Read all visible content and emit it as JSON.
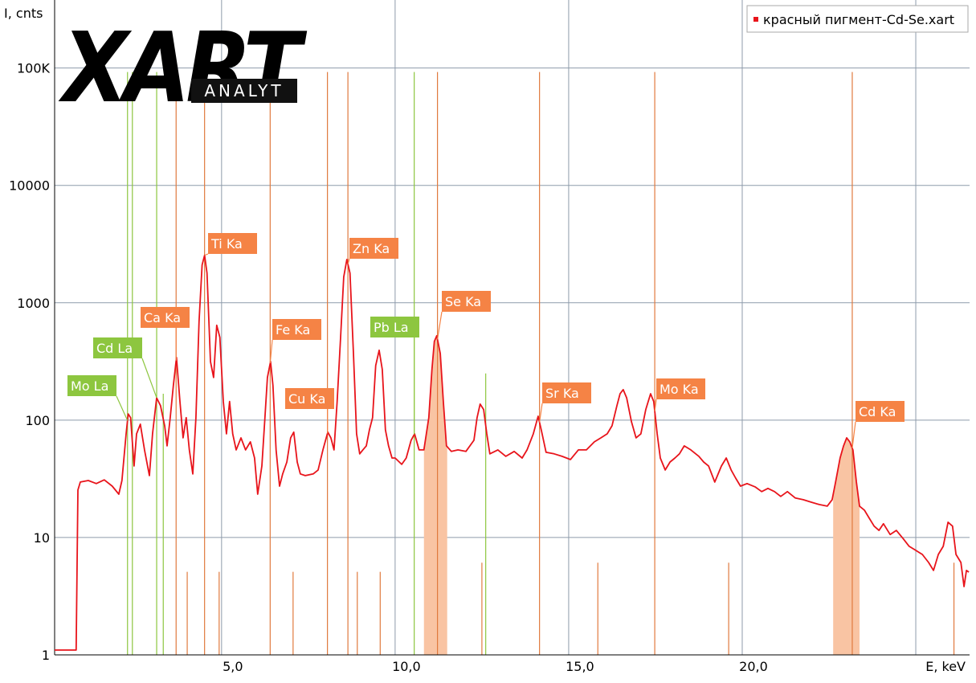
{
  "logo": {
    "name": "XART",
    "tagline": "ANALYT"
  },
  "chart_data": {
    "type": "line",
    "log_y": true,
    "grid": true,
    "legend": "top-right",
    "ylabel": "I, cnts",
    "xlabel": "E, keV",
    "xlim": [
      0.19,
      26.55
    ],
    "ylim": [
      1,
      380000
    ],
    "xticks": [
      {
        "value": 5,
        "label": "5,0"
      },
      {
        "value": 10,
        "label": "10,0"
      },
      {
        "value": 15,
        "label": "15,0"
      },
      {
        "value": 20,
        "label": "20,0"
      },
      {
        "value": 25,
        "label": null
      }
    ],
    "yticks": [
      1,
      10,
      100,
      1000,
      10000,
      {
        "value": 100000,
        "label": "100K"
      }
    ],
    "x": [
      0.19,
      0.81,
      0.86,
      0.93,
      1.16,
      1.39,
      1.62,
      1.85,
      2.04,
      2.13,
      2.25,
      2.31,
      2.38,
      2.48,
      2.55,
      2.66,
      2.78,
      2.92,
      3.01,
      3.13,
      3.24,
      3.36,
      3.43,
      3.52,
      3.61,
      3.7,
      3.8,
      3.89,
      3.98,
      4.07,
      4.17,
      4.26,
      4.35,
      4.44,
      4.51,
      4.58,
      4.68,
      4.77,
      4.86,
      4.95,
      5.05,
      5.14,
      5.23,
      5.32,
      5.42,
      5.56,
      5.69,
      5.83,
      5.95,
      6.04,
      6.16,
      6.25,
      6.32,
      6.41,
      6.48,
      6.57,
      6.67,
      6.76,
      6.88,
      6.99,
      7.08,
      7.18,
      7.27,
      7.41,
      7.64,
      7.78,
      7.92,
      8.06,
      8.15,
      8.24,
      8.33,
      8.43,
      8.52,
      8.61,
      8.7,
      8.8,
      8.89,
      8.98,
      9.07,
      9.17,
      9.26,
      9.35,
      9.44,
      9.54,
      9.63,
      9.72,
      9.81,
      9.91,
      10.0,
      10.19,
      10.32,
      10.46,
      10.56,
      10.69,
      10.83,
      10.97,
      11.06,
      11.13,
      11.2,
      11.3,
      11.39,
      11.48,
      11.62,
      11.81,
      12.04,
      12.27,
      12.36,
      12.45,
      12.55,
      12.64,
      12.73,
      12.96,
      13.19,
      13.43,
      13.66,
      13.8,
      13.98,
      14.12,
      14.21,
      14.35,
      14.58,
      14.81,
      15.05,
      15.28,
      15.51,
      15.74,
      15.93,
      16.11,
      16.25,
      16.39,
      16.48,
      16.57,
      16.67,
      16.81,
      16.94,
      17.08,
      17.22,
      17.36,
      17.45,
      17.55,
      17.64,
      17.78,
      17.92,
      18.06,
      18.19,
      18.33,
      18.52,
      18.75,
      18.89,
      19.03,
      19.21,
      19.4,
      19.54,
      19.68,
      19.81,
      19.95,
      20.14,
      20.37,
      20.56,
      20.74,
      20.93,
      21.11,
      21.3,
      21.53,
      21.76,
      21.99,
      22.22,
      22.45,
      22.59,
      22.69,
      22.82,
      22.92,
      23.01,
      23.1,
      23.19,
      23.29,
      23.38,
      23.52,
      23.66,
      23.8,
      23.94,
      24.07,
      24.26,
      24.44,
      24.63,
      24.81,
      25.0,
      25.19,
      25.37,
      25.51,
      25.65,
      25.79,
      25.93,
      26.06,
      26.16,
      26.3,
      26.39,
      26.46,
      26.53
    ],
    "series": [
      {
        "name": "красный пигмент-Cd-Se.xart",
        "color": "#e8141b",
        "values": [
          1.1,
          1.1,
          25.4,
          29.7,
          30.6,
          28.8,
          31,
          27.4,
          23.4,
          30.6,
          76.5,
          113,
          105,
          40.7,
          76.5,
          92.4,
          55.8,
          33.7,
          76.5,
          155,
          133,
          89.5,
          60.4,
          105,
          197,
          342,
          144,
          70.7,
          105,
          55.8,
          34.8,
          105,
          695,
          2100,
          2540,
          1790,
          316,
          231,
          643,
          508,
          144,
          76.5,
          144,
          76.5,
          55.8,
          70.7,
          55.8,
          65.3,
          47.6,
          23.4,
          40.7,
          105,
          231,
          316,
          197,
          55.8,
          27.4,
          34.8,
          44.0,
          70.7,
          79,
          44.0,
          34.8,
          33.7,
          34.8,
          37.6,
          55.8,
          79,
          70.7,
          55.8,
          144,
          508,
          1660,
          2340,
          1790,
          370,
          76.5,
          51.6,
          55.8,
          60.4,
          82.7,
          105,
          292,
          394,
          270,
          82.7,
          60.4,
          47.6,
          47.6,
          42.0,
          47.6,
          67.4,
          76.5,
          55.8,
          55.8,
          105,
          270,
          469,
          524,
          370,
          144,
          60.4,
          54.1,
          55.8,
          54.1,
          67.4,
          105,
          137,
          123,
          76.5,
          51.6,
          55.8,
          49.2,
          54.1,
          47.6,
          55.8,
          76.5,
          108,
          82.7,
          53.2,
          51.6,
          49.2,
          46.2,
          55.8,
          55.8,
          65.3,
          70.7,
          76.5,
          89.5,
          133,
          168,
          182,
          155,
          96.9,
          70.7,
          76.5,
          123,
          168,
          144,
          76.5,
          47.6,
          37.6,
          44.0,
          47.6,
          51.6,
          60.4,
          55.8,
          49.2,
          44.0,
          40.7,
          29.7,
          40.7,
          47.6,
          37.6,
          32.1,
          27.4,
          28.8,
          27.0,
          24.6,
          26.2,
          24.6,
          22.4,
          24.6,
          21.7,
          21.0,
          20.0,
          19.1,
          18.5,
          21.0,
          29.7,
          47.6,
          60.4,
          70.7,
          65.3,
          55.8,
          29.7,
          18.5,
          17.1,
          14.6,
          12.5,
          11.5,
          13.1,
          10.6,
          11.5,
          9.85,
          8.41,
          7.77,
          7.18,
          6.13,
          5.24,
          7.18,
          8.41,
          13.5,
          12.5,
          7.18,
          6.13,
          3.82,
          5.24,
          5.07
        ]
      }
    ],
    "element_lines": [
      {
        "energy": 2.29,
        "counts": 92500,
        "color": "#8dc63f"
      },
      {
        "energy": 2.43,
        "counts": 92500,
        "color": "#8dc63f"
      },
      {
        "energy": 3.13,
        "counts": 92500,
        "color": "#8dc63f"
      },
      {
        "energy": 3.32,
        "counts": 168,
        "color": "#8dc63f"
      },
      {
        "energy": 3.69,
        "counts": 92500,
        "color": "#e07a3e"
      },
      {
        "energy": 4.01,
        "counts": 5.1,
        "color": "#e07a3e"
      },
      {
        "energy": 4.51,
        "counts": 92500,
        "color": "#e07a3e"
      },
      {
        "energy": 4.93,
        "counts": 5.1,
        "color": "#e07a3e"
      },
      {
        "energy": 6.4,
        "counts": 92500,
        "color": "#e07a3e"
      },
      {
        "energy": 7.06,
        "counts": 5.1,
        "color": "#e07a3e"
      },
      {
        "energy": 8.05,
        "counts": 92500,
        "color": "#e07a3e"
      },
      {
        "energy": 8.91,
        "counts": 5.1,
        "color": "#e07a3e"
      },
      {
        "energy": 8.64,
        "counts": 92500,
        "color": "#e07a3e"
      },
      {
        "energy": 9.57,
        "counts": 5.1,
        "color": "#e07a3e"
      },
      {
        "energy": 10.55,
        "counts": 92500,
        "color": "#8dc63f"
      },
      {
        "energy": 12.61,
        "counts": 250,
        "color": "#8dc63f"
      },
      {
        "energy": 11.22,
        "counts": 92500,
        "color": "#e07a3e"
      },
      {
        "energy": 12.5,
        "counts": 6.1,
        "color": "#e07a3e"
      },
      {
        "energy": 14.16,
        "counts": 92500,
        "color": "#e07a3e"
      },
      {
        "energy": 15.84,
        "counts": 6.1,
        "color": "#e07a3e"
      },
      {
        "energy": 17.48,
        "counts": 92500,
        "color": "#e07a3e"
      },
      {
        "energy": 19.61,
        "counts": 6.1,
        "color": "#e07a3e"
      },
      {
        "energy": 23.17,
        "counts": 92500,
        "color": "#e07a3e"
      },
      {
        "energy": 26.1,
        "counts": 6.1,
        "color": "#e07a3e"
      }
    ],
    "regions": [
      {
        "range": [
          10.83,
          11.5
        ],
        "color": "#f9c4a3"
      },
      {
        "range": [
          22.62,
          23.38
        ],
        "color": "#f9c4a3"
      }
    ],
    "annotations": [
      {
        "text": "Mo La",
        "energy": 2.29,
        "color": "#8dc63f"
      },
      {
        "text": "Cd La",
        "energy": 3.13,
        "color": "#8dc63f"
      },
      {
        "text": "Ca Ka",
        "energy": 3.69,
        "color": "#f58345"
      },
      {
        "text": "Ti Ka",
        "energy": 4.51,
        "color": "#f58345"
      },
      {
        "text": "Fe Ka",
        "energy": 6.4,
        "color": "#f58345"
      },
      {
        "text": "Cu Ka",
        "energy": 8.05,
        "color": "#f58345"
      },
      {
        "text": "Zn Ka",
        "energy": 8.64,
        "color": "#f58345"
      },
      {
        "text": "Pb La",
        "energy": 10.55,
        "color": "#8dc63f"
      },
      {
        "text": "Se Ka",
        "energy": 11.22,
        "color": "#f58345"
      },
      {
        "text": "Sr Ka",
        "energy": 14.16,
        "color": "#f58345"
      },
      {
        "text": "Mo Ka",
        "energy": 17.48,
        "color": "#f58345"
      },
      {
        "text": "Cd Ka",
        "energy": 23.17,
        "color": "#f58345"
      }
    ]
  }
}
